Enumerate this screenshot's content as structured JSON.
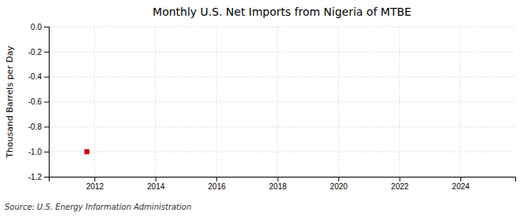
{
  "chart_data": {
    "type": "scatter",
    "title": "Monthly U.S. Net Imports from Nigeria of MTBE",
    "ylabel": "Thousand Barrels per Day",
    "annotations": [
      "Source: U.S. Energy Information Administration"
    ],
    "x": [
      2011.75
    ],
    "values": [
      -1.0
    ],
    "color": "#cc0000",
    "marker": "square",
    "xlim": [
      2010.5,
      2025.8
    ],
    "xticks": [
      2012,
      2014,
      2016,
      2018,
      2020,
      2022,
      2024
    ],
    "ylim": [
      -1.2,
      0.0
    ],
    "yticks": [
      {
        "value": 0.0,
        "label": "0.0"
      },
      -0.2,
      -0.4,
      -0.6,
      -0.8,
      {
        "value": -1.0,
        "label": "-1.0"
      },
      -1.2
    ],
    "grid": true
  }
}
